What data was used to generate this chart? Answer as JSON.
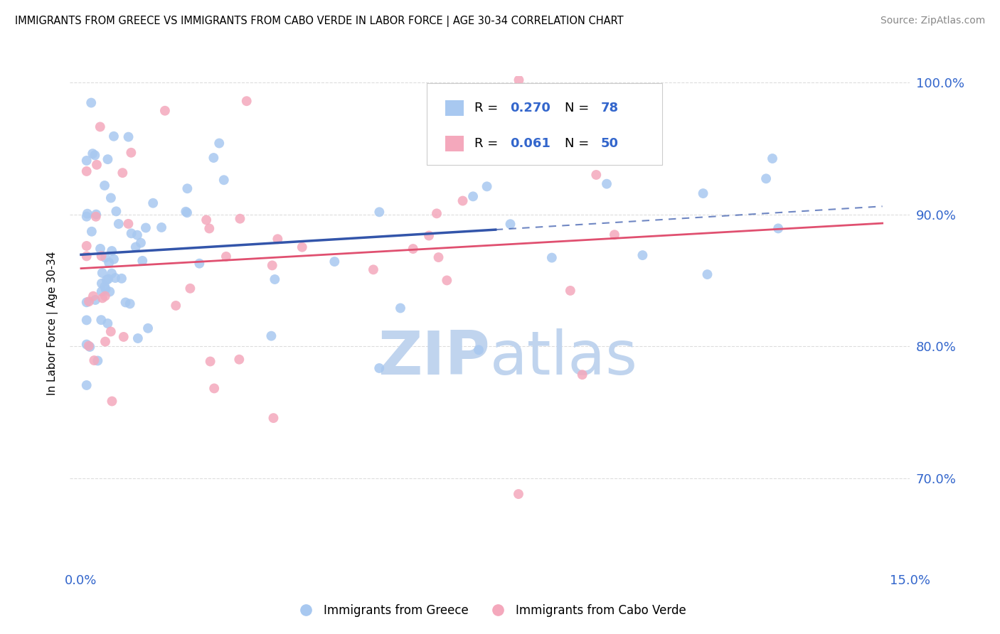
{
  "title": "IMMIGRANTS FROM GREECE VS IMMIGRANTS FROM CABO VERDE IN LABOR FORCE | AGE 30-34 CORRELATION CHART",
  "source": "Source: ZipAtlas.com",
  "ylabel": "In Labor Force | Age 30-34",
  "legend_greece": "Immigrants from Greece",
  "legend_caboverde": "Immigrants from Cabo Verde",
  "R_greece": 0.27,
  "N_greece": 78,
  "R_caboverde": 0.061,
  "N_caboverde": 50,
  "color_greece": "#A8C8F0",
  "color_caboverde": "#F4A8BC",
  "line_color_greece": "#3355AA",
  "line_color_caboverde": "#E05070",
  "watermark_zip_color": "#C0D4EE",
  "watermark_atlas_color": "#C0D4EE",
  "xmin": 0.0,
  "xmax": 0.15,
  "ymin": 0.63,
  "ymax": 1.005,
  "yticks": [
    0.7,
    0.8,
    0.9,
    1.0
  ],
  "ytick_labels": [
    "70.0%",
    "80.0%",
    "90.0%",
    "100.0%"
  ],
  "xtick_left_label": "0.0%",
  "xtick_right_label": "15.0%"
}
